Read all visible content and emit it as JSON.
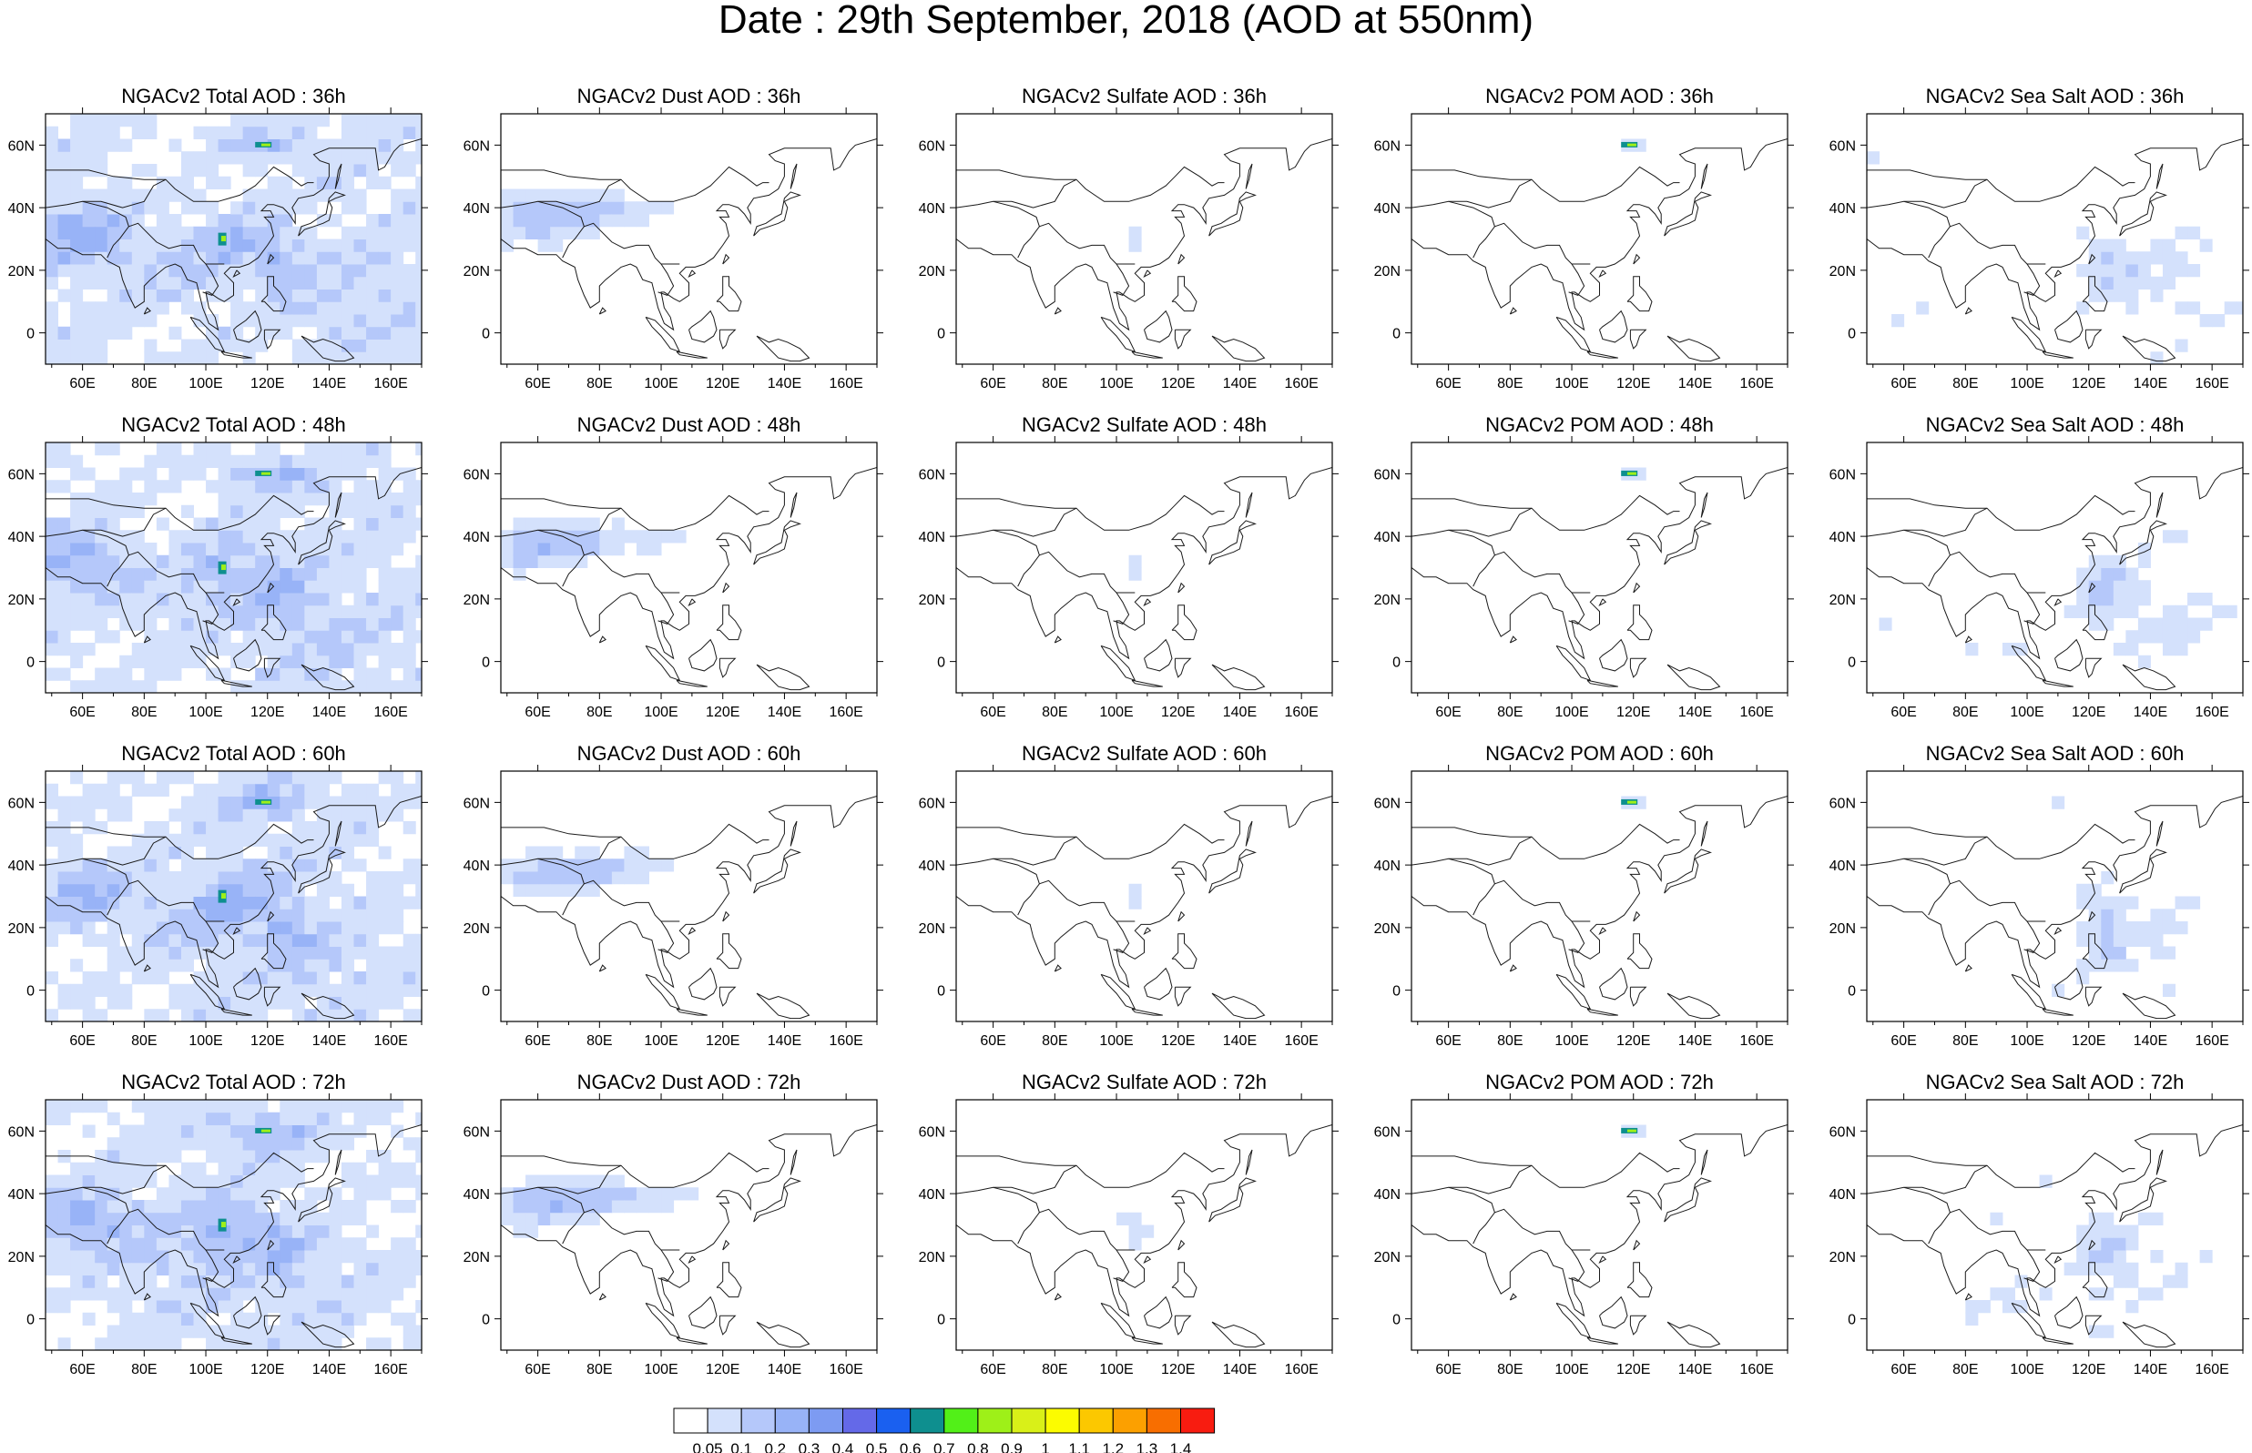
{
  "title": "Date : 29th September, 2018 (AOD at 550nm)",
  "chart_data": {
    "type": "heatmap",
    "map_region": "Asia",
    "lon_ticks": [
      "60E",
      "80E",
      "100E",
      "120E",
      "140E",
      "160E"
    ],
    "lat_ticks": [
      "60N",
      "40N",
      "20N",
      "0"
    ],
    "lon_range": [
      48,
      170
    ],
    "lat_range": [
      -10,
      70
    ],
    "panel_titles": [
      [
        "NGACv2 Total AOD : 36h",
        "NGACv2 Dust AOD : 36h",
        "NGACv2 Sulfate AOD : 36h",
        "NGACv2 POM AOD : 36h",
        "NGACv2 Sea Salt AOD : 36h"
      ],
      [
        "NGACv2 Total AOD : 48h",
        "NGACv2 Dust AOD : 48h",
        "NGACv2 Sulfate AOD : 48h",
        "NGACv2 POM AOD : 48h",
        "NGACv2 Sea Salt AOD : 48h"
      ],
      [
        "NGACv2 Total AOD : 60h",
        "NGACv2 Dust AOD : 60h",
        "NGACv2 Sulfate AOD : 60h",
        "NGACv2 POM AOD : 60h",
        "NGACv2 Sea Salt AOD : 60h"
      ],
      [
        "NGACv2 Total AOD : 72h",
        "NGACv2 Dust AOD : 72h",
        "NGACv2 Sulfate AOD : 72h",
        "NGACv2 POM AOD : 72h",
        "NGACv2 Sea Salt  AOD : 72h"
      ]
    ],
    "colorbar": {
      "labels": [
        "0.05",
        "0.1",
        "0.2",
        "0.3",
        "0.4",
        "0.5",
        "0.6",
        "0.7",
        "0.8",
        "0.9",
        "1",
        "1.1",
        "1.2",
        "1.3",
        "1.4"
      ],
      "colors": [
        "#ffffff",
        "#d4e1fc",
        "#b5c8fa",
        "#98b3f7",
        "#7d9bf2",
        "#6469e8",
        "#1a60f0",
        "#0e8f8f",
        "#52f018",
        "#9ef018",
        "#d9f018",
        "#fcfc00",
        "#fcc800",
        "#fca000",
        "#f86e00",
        "#f81c10"
      ]
    }
  }
}
